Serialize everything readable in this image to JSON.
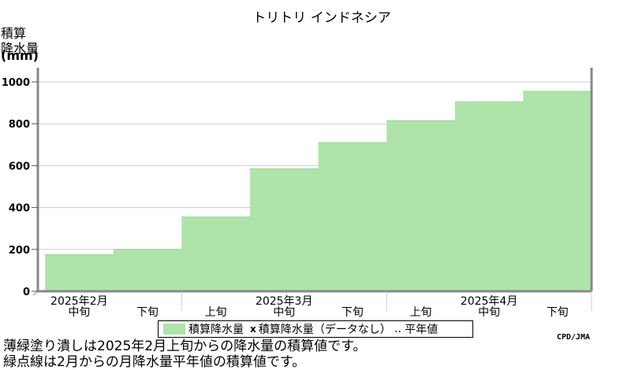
{
  "chart_data": {
    "type": "area",
    "title": "トリトリ インドネシア",
    "ylabel_lines": [
      "積算",
      "降水量",
      "(mm)"
    ],
    "ylim": [
      0,
      1000
    ],
    "yticks": [
      0,
      200,
      400,
      600,
      800,
      1000
    ],
    "periods": [
      "2月中旬",
      "2月下旬",
      "3月上旬",
      "3月中旬",
      "3月下旬",
      "4月上旬",
      "4月中旬",
      "4月下旬"
    ],
    "dekad_labels": [
      "中旬",
      "下旬",
      "上旬",
      "中旬",
      "下旬",
      "上旬",
      "中旬",
      "下旬"
    ],
    "month_labels": [
      {
        "label": "2025年2月",
        "period_index": 0
      },
      {
        "label": "2025年3月",
        "period_index": 3
      },
      {
        "label": "2025年4月",
        "period_index": 6
      }
    ],
    "series": [
      {
        "name": "積算降水量",
        "values": [
          175,
          200,
          355,
          585,
          710,
          815,
          905,
          955
        ],
        "color": "#aee4aa"
      }
    ],
    "grid": true,
    "legend_position": "bottom",
    "credit": "CPD/JMA"
  },
  "legend": {
    "items": [
      {
        "kind": "swatch",
        "label": "積算降水量",
        "color": "#aee4aa"
      },
      {
        "kind": "marker",
        "marker": "x",
        "label": "積算降水量（データなし）"
      },
      {
        "kind": "dotted",
        "label": "平年値"
      }
    ]
  },
  "notes": [
    "薄緑塗り潰しは2025年2月上旬からの降水量の積算値です。",
    "緑点線は2月からの月降水量平年値の積算値です。"
  ]
}
